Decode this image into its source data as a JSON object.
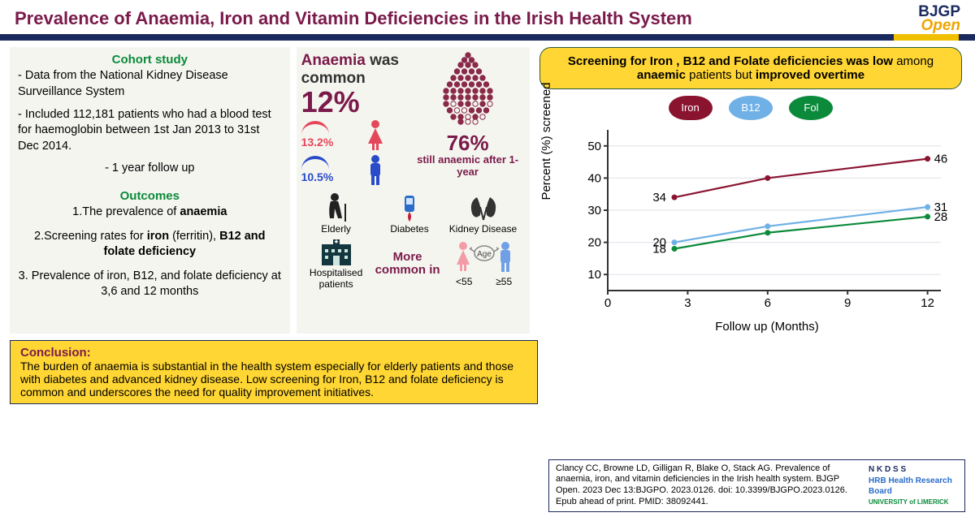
{
  "header": {
    "title": "Prevalence of Anaemia, Iron and Vitamin Deficiencies in the Irish Health System",
    "logo_top": "BJGP",
    "logo_bottom": "Open"
  },
  "left": {
    "cohort_title": "Cohort study",
    "bullet1": "- Data from the National Kidney Disease Surveillance System",
    "bullet2": "- Included 112,181 patients who had a blood test for haemoglobin between 1st Jan 2013 to 31st Dec 2014.",
    "bullet3": "- 1 year follow up",
    "outcomes_title": "Outcomes",
    "o1a": "1.The prevalence of ",
    "o1b": "anaemia",
    "o2a": "2.Screening rates for ",
    "o2b": "iron",
    "o2c": " (ferritin), ",
    "o2d": "B12 and folate deficiency",
    "o3": "3. Prevalence of iron, B12, and folate deficiency at 3,6 and 12 months"
  },
  "mid": {
    "anaemia_word": "Anaemia",
    "anaemia_was": " was common",
    "anaemia_pct": "12%",
    "female_pct": "13.2%",
    "male_pct": "10.5%",
    "female_color": "#e4475a",
    "male_color": "#2a4cc9",
    "still_pct": "76%",
    "still_text": "still anaemic after 1-year",
    "icons": {
      "elderly": "Elderly",
      "diabetes": "Diabetes",
      "kidney": "Kidney Disease",
      "hosp": "Hospitalised patients",
      "age_lt": "<55",
      "age_ge": "≥55",
      "age": "Age"
    },
    "more_common": "More common in"
  },
  "right": {
    "banner_a": "Screening  for Iron , B12 and Folate deficiencies was low ",
    "banner_b": "among ",
    "banner_c": "anaemic",
    "banner_d": " patients but ",
    "banner_e": "improved overtime",
    "legend": {
      "iron": "Iron",
      "b12": "B12",
      "fol": "Fol"
    },
    "chart": {
      "type": "line",
      "ylabel": "Percent (%) screened",
      "xlabel": "Follow up (Months)",
      "x_ticks": [
        0,
        3,
        6,
        9,
        12
      ],
      "y_ticks": [
        10,
        20,
        30,
        40,
        50
      ],
      "ylim": [
        5,
        55
      ],
      "xlim": [
        0,
        12.5
      ],
      "series": {
        "iron": {
          "color": "#8a1430",
          "points": [
            [
              2.5,
              34
            ],
            [
              6,
              40
            ],
            [
              12,
              46
            ]
          ],
          "lw": 2.2,
          "start_label": "34",
          "end_label": "46"
        },
        "b12": {
          "color": "#6fb0e6",
          "points": [
            [
              2.5,
              20
            ],
            [
              6,
              25
            ],
            [
              12,
              31
            ]
          ],
          "lw": 2.2,
          "start_label": "20",
          "end_label": "31"
        },
        "fol": {
          "color": "#0a8a3a",
          "points": [
            [
              2.5,
              18
            ],
            [
              6,
              23
            ],
            [
              12,
              28
            ]
          ],
          "lw": 2.2,
          "start_label": "18",
          "end_label": "28"
        }
      },
      "axis_color": "#333",
      "grid_color": "#e0e0ea",
      "label_fontsize": 15
    }
  },
  "conclusion": {
    "title": "Conclusion:",
    "text": "The burden of anaemia is substantial in the health system especially for elderly patients and those with diabetes and advanced kidney disease. Low screening for Iron, B12 and folate deficiency is common and underscores the need for quality improvement initiatives."
  },
  "citation": {
    "text": "Clancy CC, Browne LD, Gilligan R, Blake O, Stack AG. Prevalence of anaemia, iron, and vitamin deficiencies in the Irish health system. BJGP Open. 2023 Dec 13:BJGPO. 2023.0126. doi: 10.3399/BJGPO.2023.0126. Epub ahead of print. PMID: 38092441.",
    "logos": {
      "nkss": "N K D S S",
      "hrb": "HRB Health Research Board",
      "ul": "UNIVERSITY of LIMERICK"
    }
  }
}
